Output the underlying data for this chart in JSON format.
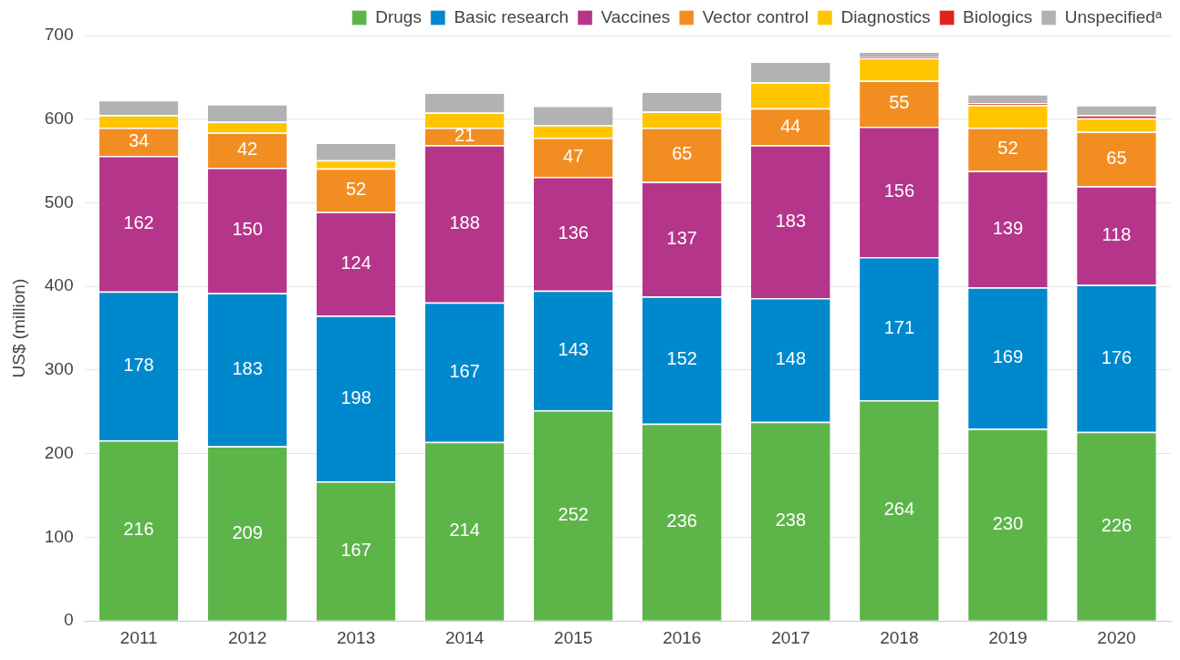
{
  "chart_data": {
    "type": "bar",
    "stacked": true,
    "ylabel": "US$ (million)",
    "categories": [
      "2011",
      "2012",
      "2013",
      "2014",
      "2015",
      "2016",
      "2017",
      "2018",
      "2019",
      "2020"
    ],
    "series": [
      {
        "name": "Drugs",
        "color": "#5db54a",
        "values": [
          216,
          209,
          167,
          214,
          252,
          236,
          238,
          264,
          230,
          226
        ],
        "value_labels": [
          "216",
          "209",
          "167",
          "214",
          "252",
          "236",
          "238",
          "264",
          "230",
          "226"
        ]
      },
      {
        "name": "Basic research",
        "color": "#0088cc",
        "values": [
          178,
          183,
          198,
          167,
          143,
          152,
          148,
          171,
          169,
          176
        ],
        "value_labels": [
          "178",
          "183",
          "198",
          "167",
          "143",
          "152",
          "148",
          "171",
          "169",
          "176"
        ]
      },
      {
        "name": "Vaccines",
        "color": "#b5358a",
        "values": [
          162,
          150,
          124,
          188,
          136,
          137,
          183,
          156,
          139,
          118
        ],
        "value_labels": [
          "162",
          "150",
          "124",
          "188",
          "136",
          "137",
          "183",
          "156",
          "139",
          "118"
        ]
      },
      {
        "name": "Vector control",
        "color": "#f28e21",
        "values": [
          34,
          42,
          52,
          21,
          47,
          65,
          44,
          55,
          52,
          65
        ],
        "value_labels": [
          "34",
          "42",
          "52",
          "21",
          "47",
          "65",
          "44",
          "55",
          "52",
          "65"
        ]
      },
      {
        "name": "Diagnostics",
        "color": "#ffc600",
        "values": [
          15,
          13,
          10,
          18,
          15,
          19,
          31,
          27,
          27,
          16
        ]
      },
      {
        "name": "Biologics",
        "color": "#e3211c",
        "values": [
          null,
          null,
          null,
          null,
          null,
          null,
          null,
          2,
          2,
          4
        ]
      },
      {
        "name": "Unspecifiedᵃ",
        "color": "#b0b2b3",
        "values": [
          18,
          21,
          21,
          24,
          23,
          24,
          25,
          6,
          11,
          12
        ]
      }
    ],
    "ylim": [
      0,
      700
    ],
    "yticks": [
      0,
      100,
      200,
      300,
      400,
      500,
      600,
      700
    ],
    "grid": "y",
    "legend": "top right"
  }
}
